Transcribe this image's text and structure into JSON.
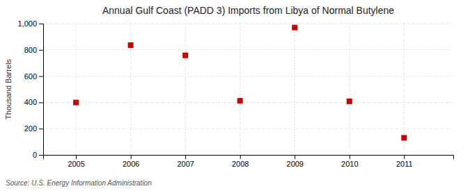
{
  "chart_data": {
    "type": "scatter",
    "title": "Annual Gulf Coast (PADD 3) Imports from Libya of Normal Butylene",
    "ylabel": "Thousand Barrels",
    "source": "Source: U.S. Energy Information Administration",
    "x": [
      2005,
      2006,
      2007,
      2008,
      2009,
      2010,
      2011
    ],
    "values": [
      399,
      836,
      758,
      412,
      970,
      408,
      130
    ],
    "color": "#cc0000",
    "marker": "square",
    "xlim": [
      2004.4,
      2011.9
    ],
    "ylim": [
      0,
      1000
    ],
    "xticks": [
      2005,
      2006,
      2007,
      2008,
      2009,
      2010,
      2011
    ],
    "yticks": [
      0,
      200,
      400,
      600,
      800,
      {
        "value": 1000,
        "label": "1,000"
      }
    ],
    "grid": true
  }
}
